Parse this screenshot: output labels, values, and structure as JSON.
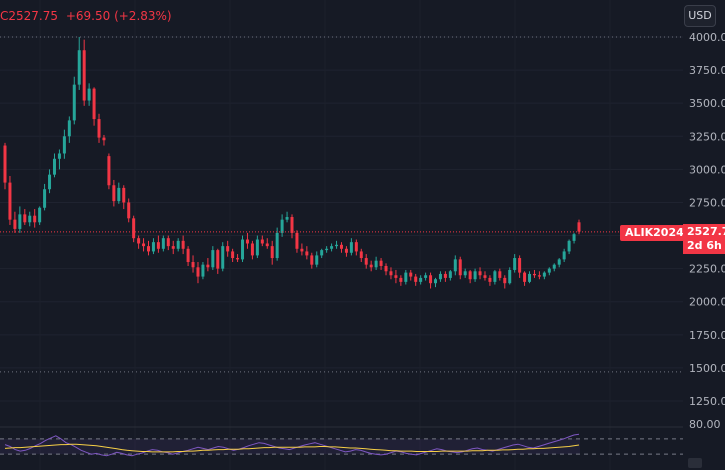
{
  "header": {
    "symbol_fragment": "C",
    "last": "2527.75",
    "change": "+69.50 (+2.83%)"
  },
  "currency_button": "USD",
  "symbol_tag": "ALIK2024",
  "price_label": {
    "price": "2527.7",
    "countdown": "2d 6h"
  },
  "price_axis": {
    "ticks": [
      "4000.00",
      "3750.00",
      "3500.00",
      "3250.00",
      "3000.00",
      "2750.00",
      "2250.00",
      "2000.00",
      "1750.00",
      "1500.00",
      "1250.00"
    ]
  },
  "rsi_axis": {
    "ticks": [
      "80.00"
    ]
  },
  "colors": {
    "up": "#26a69a",
    "down": "#f23645",
    "background": "#161a25",
    "rsi": "#7e57c2",
    "rsi_ma": "#f7d046"
  },
  "chart_data": {
    "type": "candlestick",
    "ylim": [
      1250,
      4000
    ],
    "last_price": 2527.75,
    "levels": [
      4000,
      1470
    ],
    "candles": [
      [
        3180,
        3200,
        2900,
        2850
      ],
      [
        2900,
        2950,
        2620,
        2580
      ],
      [
        2620,
        2680,
        2550,
        2520
      ],
      [
        2550,
        2720,
        2660,
        2520
      ],
      [
        2660,
        2700,
        2600,
        2580
      ],
      [
        2600,
        2680,
        2650,
        2570
      ],
      [
        2650,
        2700,
        2600,
        2560
      ],
      [
        2600,
        2720,
        2710,
        2580
      ],
      [
        2710,
        2890,
        2850,
        2690
      ],
      [
        2850,
        3000,
        2960,
        2820
      ],
      [
        2960,
        3120,
        3080,
        2940
      ],
      [
        3080,
        3150,
        3120,
        3000
      ],
      [
        3120,
        3300,
        3250,
        3080
      ],
      [
        3250,
        3400,
        3370,
        3200
      ],
      [
        3370,
        3700,
        3640,
        3340
      ],
      [
        3640,
        4000,
        3900,
        3600
      ],
      [
        3900,
        3980,
        3520,
        3480
      ],
      [
        3520,
        3650,
        3610,
        3480
      ],
      [
        3610,
        3620,
        3380,
        3330
      ],
      [
        3380,
        3420,
        3240,
        3200
      ],
      [
        3240,
        3260,
        3220,
        3180
      ],
      [
        3100,
        3120,
        2880,
        2850
      ],
      [
        2880,
        2920,
        2760,
        2720
      ],
      [
        2760,
        2900,
        2860,
        2740
      ],
      [
        2860,
        2880,
        2750,
        2700
      ],
      [
        2750,
        2780,
        2630,
        2600
      ],
      [
        2630,
        2650,
        2480,
        2450
      ],
      [
        2480,
        2500,
        2440,
        2400
      ],
      [
        2440,
        2480,
        2420,
        2380
      ],
      [
        2420,
        2460,
        2380,
        2350
      ],
      [
        2380,
        2480,
        2450,
        2360
      ],
      [
        2450,
        2500,
        2400,
        2370
      ],
      [
        2400,
        2500,
        2480,
        2380
      ],
      [
        2480,
        2500,
        2420,
        2390
      ],
      [
        2420,
        2460,
        2400,
        2360
      ],
      [
        2400,
        2480,
        2460,
        2380
      ],
      [
        2460,
        2500,
        2400,
        2360
      ],
      [
        2400,
        2420,
        2300,
        2270
      ],
      [
        2300,
        2350,
        2260,
        2220
      ],
      [
        2260,
        2300,
        2190,
        2140
      ],
      [
        2190,
        2300,
        2280,
        2170
      ],
      [
        2280,
        2330,
        2260,
        2230
      ],
      [
        2260,
        2420,
        2390,
        2240
      ],
      [
        2390,
        2400,
        2250,
        2210
      ],
      [
        2250,
        2450,
        2420,
        2230
      ],
      [
        2420,
        2460,
        2380,
        2340
      ],
      [
        2380,
        2400,
        2330,
        2300
      ],
      [
        2330,
        2360,
        2320,
        2300
      ],
      [
        2320,
        2500,
        2470,
        2300
      ],
      [
        2470,
        2520,
        2440,
        2400
      ],
      [
        2440,
        2460,
        2350,
        2320
      ],
      [
        2350,
        2500,
        2470,
        2330
      ],
      [
        2470,
        2500,
        2440,
        2420
      ],
      [
        2440,
        2480,
        2420,
        2400
      ],
      [
        2420,
        2460,
        2330,
        2280
      ],
      [
        2330,
        2560,
        2520,
        2310
      ],
      [
        2520,
        2660,
        2620,
        2490
      ],
      [
        2620,
        2680,
        2640,
        2600
      ],
      [
        2640,
        2660,
        2520,
        2480
      ],
      [
        2520,
        2540,
        2400,
        2370
      ],
      [
        2400,
        2440,
        2380,
        2350
      ],
      [
        2380,
        2420,
        2350,
        2320
      ],
      [
        2350,
        2370,
        2280,
        2250
      ],
      [
        2280,
        2380,
        2350,
        2260
      ],
      [
        2350,
        2400,
        2390,
        2330
      ],
      [
        2390,
        2420,
        2400,
        2370
      ],
      [
        2400,
        2440,
        2420,
        2380
      ],
      [
        2420,
        2460,
        2430,
        2400
      ],
      [
        2430,
        2450,
        2400,
        2370
      ],
      [
        2400,
        2420,
        2370,
        2340
      ],
      [
        2370,
        2480,
        2450,
        2350
      ],
      [
        2450,
        2470,
        2380,
        2350
      ],
      [
        2380,
        2400,
        2330,
        2300
      ],
      [
        2330,
        2360,
        2280,
        2250
      ],
      [
        2280,
        2310,
        2260,
        2230
      ],
      [
        2260,
        2340,
        2310,
        2240
      ],
      [
        2310,
        2330,
        2270,
        2240
      ],
      [
        2270,
        2290,
        2230,
        2200
      ],
      [
        2230,
        2260,
        2200,
        2170
      ],
      [
        2200,
        2240,
        2180,
        2140
      ],
      [
        2180,
        2200,
        2150,
        2120
      ],
      [
        2150,
        2240,
        2220,
        2130
      ],
      [
        2220,
        2240,
        2190,
        2160
      ],
      [
        2190,
        2210,
        2150,
        2120
      ],
      [
        2150,
        2200,
        2180,
        2130
      ],
      [
        2180,
        2220,
        2200,
        2160
      ],
      [
        2200,
        2220,
        2140,
        2100
      ],
      [
        2140,
        2180,
        2170,
        2110
      ],
      [
        2170,
        2230,
        2210,
        2150
      ],
      [
        2210,
        2230,
        2180,
        2150
      ],
      [
        2180,
        2240,
        2230,
        2160
      ],
      [
        2230,
        2350,
        2320,
        2200
      ],
      [
        2320,
        2340,
        2200,
        2170
      ],
      [
        2200,
        2250,
        2230,
        2180
      ],
      [
        2230,
        2240,
        2170,
        2140
      ],
      [
        2170,
        2250,
        2230,
        2150
      ],
      [
        2230,
        2260,
        2200,
        2170
      ],
      [
        2200,
        2230,
        2180,
        2160
      ],
      [
        2180,
        2200,
        2150,
        2120
      ],
      [
        2150,
        2240,
        2230,
        2130
      ],
      [
        2230,
        2250,
        2180,
        2160
      ],
      [
        2180,
        2200,
        2140,
        2100
      ],
      [
        2140,
        2260,
        2240,
        2130
      ],
      [
        2240,
        2360,
        2330,
        2220
      ],
      [
        2330,
        2350,
        2220,
        2180
      ],
      [
        2220,
        2230,
        2150,
        2120
      ],
      [
        2150,
        2230,
        2210,
        2140
      ],
      [
        2210,
        2240,
        2200,
        2180
      ],
      [
        2200,
        2230,
        2190,
        2170
      ],
      [
        2190,
        2230,
        2220,
        2170
      ],
      [
        2220,
        2260,
        2250,
        2200
      ],
      [
        2250,
        2290,
        2280,
        2230
      ],
      [
        2280,
        2330,
        2320,
        2260
      ],
      [
        2320,
        2400,
        2380,
        2300
      ],
      [
        2380,
        2470,
        2460,
        2360
      ],
      [
        2460,
        2520,
        2510,
        2440
      ],
      [
        2600,
        2620,
        2530,
        2510
      ]
    ],
    "rsi": {
      "upper_band": 70,
      "lower_band": 30,
      "values": [
        55,
        50,
        42,
        38,
        40,
        45,
        52,
        58,
        66,
        72,
        78,
        70,
        60,
        55,
        48,
        40,
        35,
        30,
        32,
        28,
        26,
        30,
        35,
        32,
        28,
        26,
        30,
        33,
        38,
        42,
        40,
        36,
        34,
        30,
        33,
        37,
        40,
        44,
        48,
        45,
        42,
        46,
        50,
        48,
        44,
        40,
        43,
        47,
        52,
        56,
        60,
        58,
        54,
        50,
        46,
        44,
        42,
        46,
        50,
        54,
        57,
        60,
        56,
        52,
        48,
        44,
        40,
        36,
        38,
        42,
        40,
        36,
        32,
        30,
        28,
        30,
        34,
        38,
        36,
        32,
        30,
        28,
        32,
        36,
        40,
        44,
        42,
        38,
        36,
        34,
        36,
        40,
        44,
        46,
        42,
        40,
        38,
        42,
        46,
        50,
        54,
        56,
        52,
        48,
        46,
        50,
        54,
        58,
        62,
        66,
        70,
        75,
        80,
        82
      ],
      "ma": [
        45,
        46,
        47,
        47,
        48,
        49,
        50,
        51,
        52,
        53,
        54,
        55,
        55,
        56,
        56,
        55,
        54,
        53,
        52,
        50,
        48,
        46,
        44,
        42,
        40,
        39,
        38,
        37,
        37,
        36,
        36,
        36,
        36,
        36,
        37,
        37,
        38,
        38,
        39,
        40,
        40,
        41,
        42,
        42,
        43,
        43,
        43,
        44,
        44,
        45,
        46,
        47,
        47,
        48,
        48,
        48,
        48,
        48,
        48,
        49,
        49,
        49,
        50,
        50,
        49,
        49,
        48,
        47,
        46,
        46,
        45,
        44,
        43,
        42,
        41,
        40,
        39,
        39,
        38,
        38,
        38,
        37,
        37,
        37,
        37,
        37,
        38,
        38,
        38,
        38,
        38,
        38,
        39,
        39,
        39,
        40,
        40,
        40,
        41,
        41,
        42,
        43,
        43,
        44,
        44,
        45,
        45,
        46,
        47,
        48,
        49,
        50,
        52,
        54
      ]
    }
  }
}
